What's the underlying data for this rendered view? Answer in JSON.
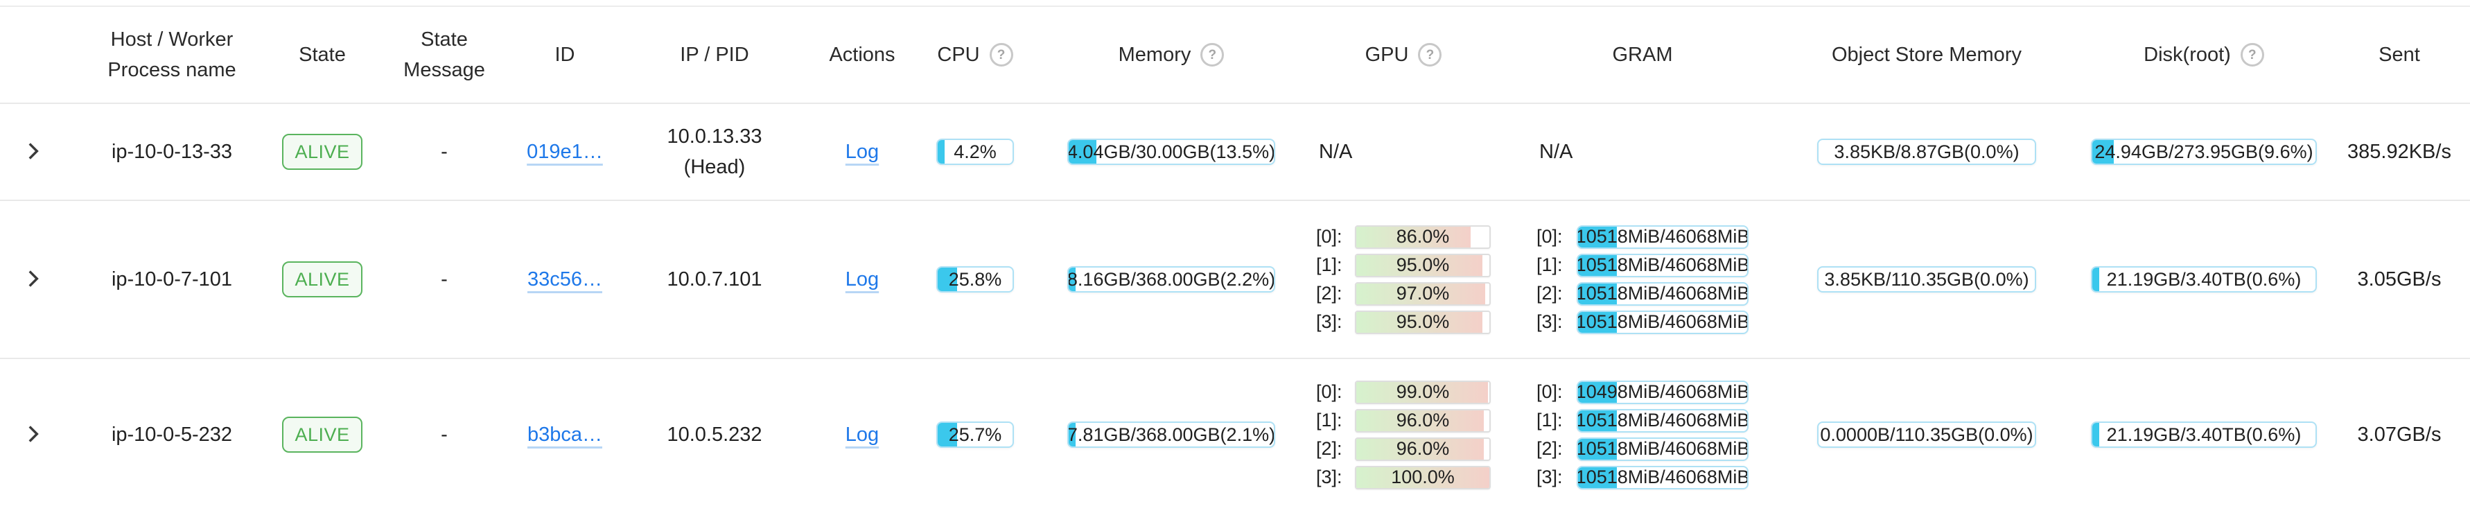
{
  "header": {
    "host_line1": "Host / Worker",
    "host_line2": "Process name",
    "state": "State",
    "state_msg_line1": "State",
    "state_msg_line2": "Message",
    "id": "ID",
    "ip_pid": "IP / PID",
    "actions": "Actions",
    "cpu": "CPU",
    "memory": "Memory",
    "gpu": "GPU",
    "gram": "GRAM",
    "object_store": "Object Store Memory",
    "disk": "Disk(root)",
    "sent": "Sent",
    "help_glyph": "?"
  },
  "colors": {
    "accent_cyan": "#3bc8ec",
    "progress_border_blue": "#aee1f5",
    "gpu_gradient_start": "#d6f2cd",
    "gpu_gradient_end": "#f4d0c9",
    "alive_green": "#4cae50",
    "link_blue": "#1e78e9"
  },
  "rows": [
    {
      "host": "ip-10-0-13-33",
      "state": "ALIVE",
      "state_message": "-",
      "id": "019e1…",
      "ip": "10.0.13.33",
      "ip_note": "(Head)",
      "action": "Log",
      "cpu": {
        "pct": 4.2,
        "label": "4.2%"
      },
      "memory": {
        "pct": 13.5,
        "label": "4.04GB/30.00GB(13.5%)"
      },
      "gpu": {
        "na": "N/A"
      },
      "gram": {
        "na": "N/A"
      },
      "object_store": {
        "pct": 0,
        "label": "3.85KB/8.87GB(0.0%)"
      },
      "disk": {
        "pct": 9.6,
        "label": "24.94GB/273.95GB(9.6%)"
      },
      "sent": "385.92KB/s"
    },
    {
      "host": "ip-10-0-7-101",
      "state": "ALIVE",
      "state_message": "-",
      "id": "33c56…",
      "ip": "10.0.7.101",
      "ip_note": "",
      "action": "Log",
      "cpu": {
        "pct": 25.8,
        "label": "25.8%"
      },
      "memory": {
        "pct": 2.2,
        "label": "8.16GB/368.00GB(2.2%)"
      },
      "gpu": {
        "items": [
          {
            "idx": "[0]:",
            "pct": 86,
            "label": "86.0%"
          },
          {
            "idx": "[1]:",
            "pct": 95,
            "label": "95.0%"
          },
          {
            "idx": "[2]:",
            "pct": 97,
            "label": "97.0%"
          },
          {
            "idx": "[3]:",
            "pct": 95,
            "label": "95.0%"
          }
        ]
      },
      "gram": {
        "items": [
          {
            "idx": "[0]:",
            "pct": 22.8,
            "label": "10518MiB/46068MiB"
          },
          {
            "idx": "[1]:",
            "pct": 22.8,
            "label": "10518MiB/46068MiB"
          },
          {
            "idx": "[2]:",
            "pct": 22.8,
            "label": "10518MiB/46068MiB"
          },
          {
            "idx": "[3]:",
            "pct": 22.8,
            "label": "10518MiB/46068MiB"
          }
        ]
      },
      "object_store": {
        "pct": 0,
        "label": "3.85KB/110.35GB(0.0%)"
      },
      "disk": {
        "pct": 0.6,
        "label": "21.19GB/3.40TB(0.6%)"
      },
      "sent": "3.05GB/s"
    },
    {
      "host": "ip-10-0-5-232",
      "state": "ALIVE",
      "state_message": "-",
      "id": "b3bca…",
      "ip": "10.0.5.232",
      "ip_note": "",
      "action": "Log",
      "cpu": {
        "pct": 25.7,
        "label": "25.7%"
      },
      "memory": {
        "pct": 2.1,
        "label": "7.81GB/368.00GB(2.1%)"
      },
      "gpu": {
        "items": [
          {
            "idx": "[0]:",
            "pct": 99,
            "label": "99.0%"
          },
          {
            "idx": "[1]:",
            "pct": 96,
            "label": "96.0%"
          },
          {
            "idx": "[2]:",
            "pct": 96,
            "label": "96.0%"
          },
          {
            "idx": "[3]:",
            "pct": 100,
            "label": "100.0%"
          }
        ]
      },
      "gram": {
        "items": [
          {
            "idx": "[0]:",
            "pct": 22.8,
            "label": "10498MiB/46068MiB"
          },
          {
            "idx": "[1]:",
            "pct": 22.8,
            "label": "10518MiB/46068MiB"
          },
          {
            "idx": "[2]:",
            "pct": 22.8,
            "label": "10518MiB/46068MiB"
          },
          {
            "idx": "[3]:",
            "pct": 22.8,
            "label": "10518MiB/46068MiB"
          }
        ]
      },
      "object_store": {
        "pct": 0,
        "label": "0.0000B/110.35GB(0.0%)"
      },
      "disk": {
        "pct": 0.6,
        "label": "21.19GB/3.40TB(0.6%)"
      },
      "sent": "3.07GB/s"
    }
  ]
}
